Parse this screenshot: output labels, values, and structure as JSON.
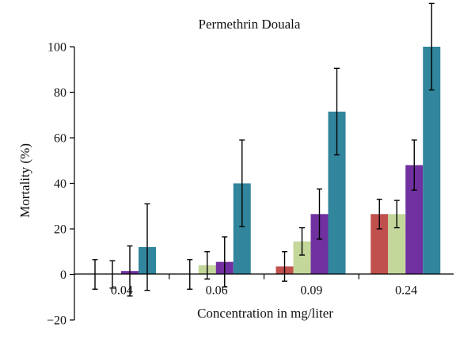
{
  "chart_data": {
    "type": "bar",
    "title": "Permethrin Douala",
    "xlabel": "Concentration in mg/liter",
    "ylabel": "Mortality (%)",
    "ylim": [
      -20,
      100
    ],
    "yticks": [
      -20,
      0,
      20,
      40,
      60,
      80,
      100
    ],
    "yticks_text": [
      "−20",
      "0",
      "20",
      "40",
      "60",
      "80",
      "100"
    ],
    "grid": false,
    "legend": "none",
    "categories": [
      "0.04",
      "0.06",
      "0.09",
      "0.24"
    ],
    "series": [
      {
        "color": "#c0504d",
        "values": [
          0,
          0,
          3.5,
          26.5
        ],
        "errors": [
          6.5,
          6.5,
          6.5,
          6.5
        ]
      },
      {
        "color": "#c4d79b",
        "values": [
          0,
          4,
          14.5,
          26.5
        ],
        "errors": [
          6,
          6,
          6,
          6
        ]
      },
      {
        "color": "#7030a0",
        "values": [
          1.5,
          5.5,
          26.5,
          48
        ],
        "errors": [
          11,
          11,
          11,
          11
        ]
      },
      {
        "color": "#31859c",
        "values": [
          12,
          40,
          71.5,
          100
        ],
        "errors": [
          19,
          19,
          19,
          19
        ]
      }
    ]
  }
}
